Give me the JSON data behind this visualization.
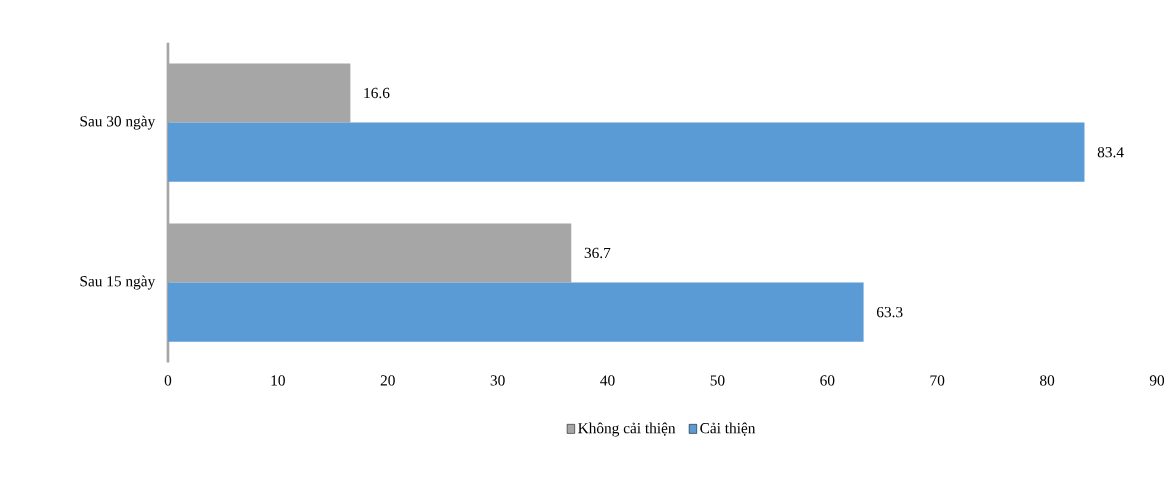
{
  "chart_data": {
    "type": "bar",
    "orientation": "horizontal",
    "categories": [
      "Sau 30 ngày",
      "Sau 15 ngày"
    ],
    "series": [
      {
        "name": "Không cải thiện",
        "color": "#a6a6a6",
        "values": [
          16.6,
          36.7
        ]
      },
      {
        "name": "Cải thiện",
        "color": "#5b9bd5",
        "values": [
          83.4,
          63.3
        ]
      }
    ],
    "xlim": [
      0,
      90
    ],
    "xticks": [
      0,
      10,
      20,
      30,
      40,
      50,
      60,
      70,
      80,
      90
    ],
    "data_labels": true,
    "legend": "bottom",
    "grid": false
  }
}
